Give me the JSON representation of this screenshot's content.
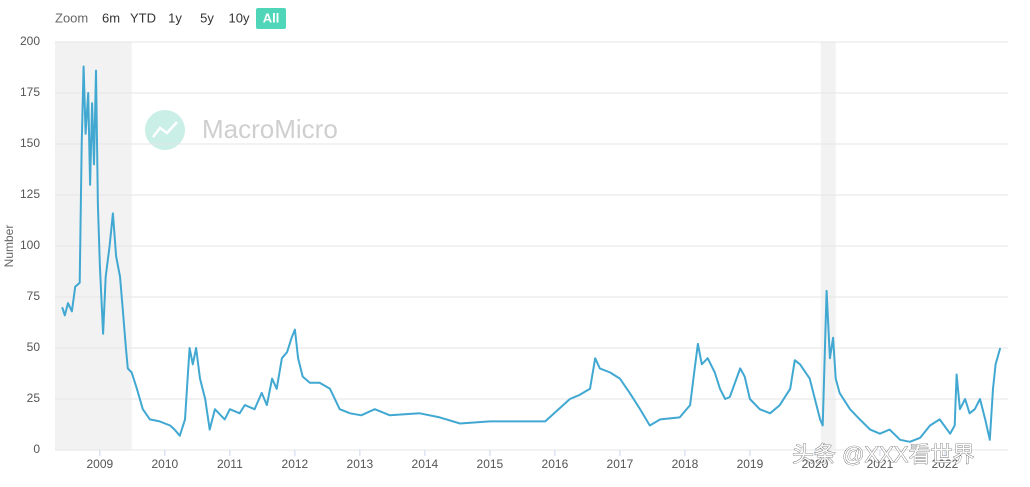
{
  "toolbar": {
    "label": "Zoom",
    "buttons": [
      "6m",
      "YTD",
      "1y",
      "5y",
      "10y",
      "All"
    ],
    "active": 5
  },
  "watermark": "MacroMicro",
  "overlay_text": "头条 @XXX看世界",
  "chart_data": {
    "type": "line",
    "y_label": "Number",
    "color": "#41a8d2",
    "shaded": [
      [
        2008.31,
        2009.49
      ],
      [
        2020.09,
        2020.32
      ]
    ],
    "xlim": [
      2008.31,
      2022.97
    ],
    "xticks": [
      2009,
      2010,
      2011,
      2012,
      2013,
      2014,
      2015,
      2016,
      2017,
      2018,
      2019,
      2020,
      2021,
      2022
    ],
    "ylim": [
      0,
      200
    ],
    "yticks": [
      0,
      25,
      50,
      75,
      100,
      125,
      150,
      175,
      200
    ],
    "grid": true,
    "x": [
      2008.42,
      2008.46,
      2008.51,
      2008.57,
      2008.62,
      2008.69,
      2008.72,
      2008.75,
      2008.78,
      2008.82,
      2008.85,
      2008.88,
      2008.91,
      2008.94,
      2008.97,
      2009.0,
      2009.05,
      2009.09,
      2009.15,
      2009.2,
      2009.25,
      2009.31,
      2009.35,
      2009.4,
      2009.43,
      2009.49,
      2009.57,
      2009.66,
      2009.77,
      2009.92,
      2010.08,
      2010.15,
      2010.23,
      2010.31,
      2010.35,
      2010.38,
      2010.43,
      2010.48,
      2010.54,
      2010.62,
      2010.69,
      2010.77,
      2010.92,
      2011.0,
      2011.15,
      2011.23,
      2011.38,
      2011.49,
      2011.57,
      2011.65,
      2011.72,
      2011.8,
      2011.88,
      2011.95,
      2012.0,
      2012.05,
      2012.12,
      2012.23,
      2012.38,
      2012.54,
      2012.69,
      2012.85,
      2013.02,
      2013.23,
      2013.46,
      2013.92,
      2014.23,
      2014.54,
      2015.0,
      2015.46,
      2015.85,
      2016.23,
      2016.38,
      2016.54,
      2016.62,
      2016.69,
      2016.85,
      2017.0,
      2017.15,
      2017.31,
      2017.46,
      2017.62,
      2017.92,
      2018.08,
      2018.15,
      2018.2,
      2018.26,
      2018.35,
      2018.46,
      2018.54,
      2018.62,
      2018.69,
      2018.85,
      2018.92,
      2019.0,
      2019.15,
      2019.31,
      2019.46,
      2019.62,
      2019.69,
      2019.77,
      2019.92,
      2020.0,
      2020.08,
      2020.12,
      2020.18,
      2020.23,
      2020.28,
      2020.32,
      2020.38,
      2020.54,
      2020.69,
      2020.85,
      2021.0,
      2021.15,
      2021.31,
      2021.46,
      2021.62,
      2021.77,
      2021.92,
      2022.08,
      2022.15,
      2022.18,
      2022.23,
      2022.31,
      2022.38,
      2022.46,
      2022.54,
      2022.62,
      2022.69,
      2022.74,
      2022.78,
      2022.85
    ],
    "values": [
      70,
      66,
      72,
      68,
      80,
      82,
      150,
      188,
      155,
      175,
      130,
      170,
      140,
      186,
      120,
      90,
      57,
      85,
      100,
      116,
      95,
      85,
      70,
      50,
      40,
      38,
      30,
      20,
      15,
      14,
      12,
      10,
      7,
      15,
      35,
      50,
      42,
      50,
      35,
      25,
      10,
      20,
      15,
      20,
      18,
      22,
      20,
      28,
      22,
      35,
      30,
      45,
      48,
      55,
      59,
      45,
      36,
      33,
      33,
      30,
      20,
      18,
      17,
      20,
      17,
      18,
      16,
      13,
      14,
      14,
      14,
      25,
      27,
      30,
      45,
      40,
      38,
      35,
      28,
      20,
      12,
      15,
      16,
      22,
      40,
      52,
      42,
      45,
      38,
      30,
      25,
      26,
      40,
      36,
      25,
      20,
      18,
      22,
      30,
      44,
      42,
      35,
      25,
      15,
      12,
      78,
      45,
      55,
      35,
      28,
      20,
      15,
      10,
      8,
      10,
      5,
      4,
      6,
      12,
      15,
      8,
      12,
      37,
      20,
      25,
      18,
      20,
      25,
      15,
      5,
      30,
      42,
      50
    ]
  }
}
